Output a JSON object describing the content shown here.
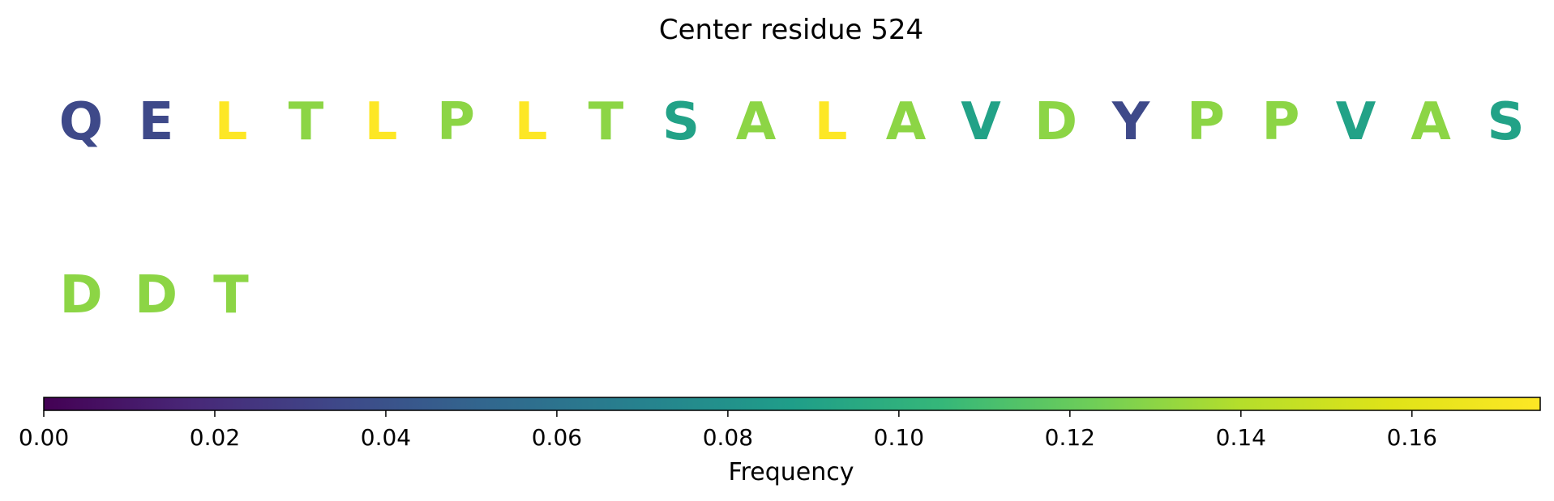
{
  "chart_data": {
    "type": "heatmap",
    "title": "Center residue 524",
    "residues": [
      {
        "letter": "Q",
        "value": 0.035
      },
      {
        "letter": "E",
        "value": 0.035
      },
      {
        "letter": "L",
        "value": 0.175
      },
      {
        "letter": "T",
        "value": 0.13
      },
      {
        "letter": "L",
        "value": 0.175
      },
      {
        "letter": "P",
        "value": 0.13
      },
      {
        "letter": "L",
        "value": 0.175
      },
      {
        "letter": "T",
        "value": 0.13
      },
      {
        "letter": "S",
        "value": 0.09
      },
      {
        "letter": "A",
        "value": 0.13
      },
      {
        "letter": "L",
        "value": 0.175
      },
      {
        "letter": "A",
        "value": 0.13
      },
      {
        "letter": "V",
        "value": 0.09
      },
      {
        "letter": "D",
        "value": 0.13
      },
      {
        "letter": "Y",
        "value": 0.035
      },
      {
        "letter": "P",
        "value": 0.13
      },
      {
        "letter": "P",
        "value": 0.13
      },
      {
        "letter": "V",
        "value": 0.09
      },
      {
        "letter": "A",
        "value": 0.13
      },
      {
        "letter": "S",
        "value": 0.09
      },
      {
        "letter": "D",
        "value": 0.13
      },
      {
        "letter": "D",
        "value": 0.13
      },
      {
        "letter": "T",
        "value": 0.13
      }
    ],
    "colorbar": {
      "label": "Frequency",
      "range": [
        0,
        0.175
      ],
      "colormap": "viridis",
      "ticks": [
        0.0,
        0.02,
        0.04,
        0.06,
        0.08,
        0.1,
        0.12,
        0.14,
        0.16
      ],
      "tick_labels": [
        "0.00",
        "0.02",
        "0.04",
        "0.06",
        "0.08",
        "0.10",
        "0.12",
        "0.14",
        "0.16"
      ]
    }
  }
}
